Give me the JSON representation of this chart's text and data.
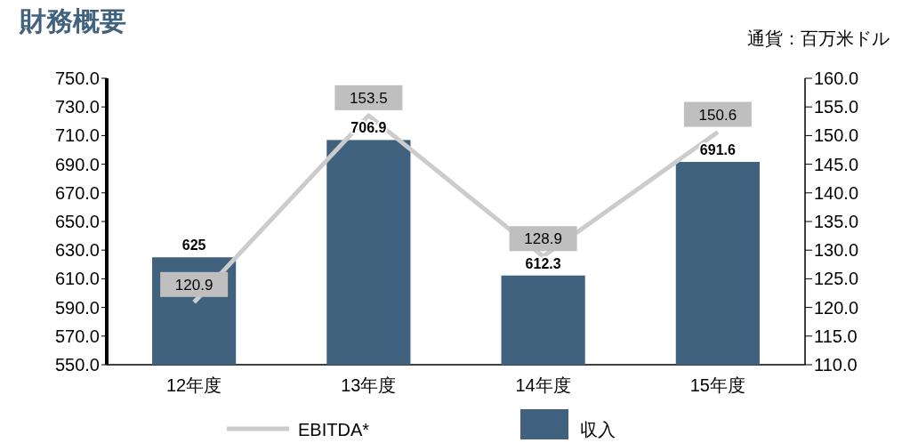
{
  "chart_data": {
    "type": "bar",
    "title": "財務概要",
    "annotations": [
      "通貨：百万米ドル"
    ],
    "categories": [
      "12年度",
      "13年度",
      "14年度",
      "15年度"
    ],
    "series": [
      {
        "name": "EBITDA*",
        "type": "line",
        "axis": "y2",
        "color": "#cccccc",
        "values": [
          120.9,
          153.5,
          128.9,
          150.6
        ]
      },
      {
        "name": "収入",
        "color": "#41627e",
        "values": [
          625,
          706.9,
          612.3,
          691.6
        ]
      }
    ],
    "ylim": [
      550,
      750
    ],
    "yticks": [
      {
        "value": 550,
        "label": "550.0"
      },
      {
        "value": 570,
        "label": "570.0"
      },
      {
        "value": 590,
        "label": "590.0"
      },
      {
        "value": 610,
        "label": "610.0"
      },
      {
        "value": 630,
        "label": "630.0"
      },
      {
        "value": 650,
        "label": "650.0"
      },
      {
        "value": 670,
        "label": "670.0"
      },
      {
        "value": 690,
        "label": "690.0"
      },
      {
        "value": 710,
        "label": "710.0"
      },
      {
        "value": 730,
        "label": "730.0"
      },
      {
        "value": 750,
        "label": "750.0"
      }
    ],
    "y2lim": [
      110,
      160
    ],
    "y2ticks": [
      {
        "value": 110,
        "label": "110.0"
      },
      {
        "value": 115,
        "label": "115.0"
      },
      {
        "value": 120,
        "label": "120.0"
      },
      {
        "value": 125,
        "label": "125.0"
      },
      {
        "value": 130,
        "label": "130.0"
      },
      {
        "value": 135,
        "label": "135.0"
      },
      {
        "value": 140,
        "label": "140.0"
      },
      {
        "value": 145,
        "label": "145.0"
      },
      {
        "value": 150,
        "label": "150.0"
      },
      {
        "value": 155,
        "label": "155.0"
      },
      {
        "value": 160,
        "label": "160.0"
      }
    ],
    "data_labels": true,
    "legend": "bottom",
    "grid": false
  }
}
